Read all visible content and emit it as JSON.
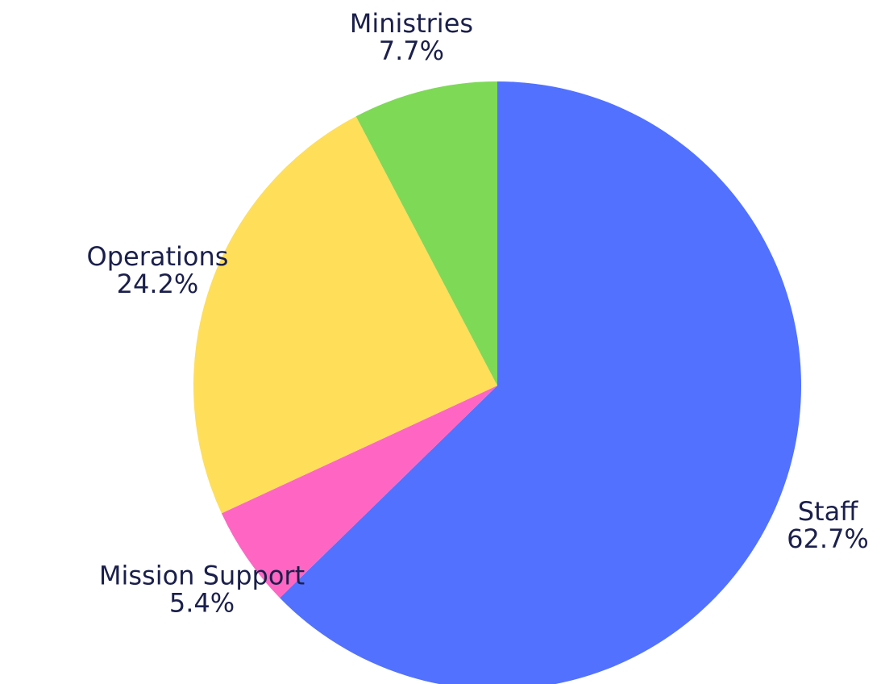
{
  "chart_data": {
    "type": "pie",
    "start_angle_deg": 0,
    "direction": "clockwise",
    "slices": [
      {
        "label": "Staff",
        "percent_label": "62.7%",
        "value": 62.7,
        "color": "#5271FF"
      },
      {
        "label": "Mission Support",
        "percent_label": "5.4%",
        "value": 5.4,
        "color": "#FF66C4"
      },
      {
        "label": "Operations",
        "percent_label": "24.2%",
        "value": 24.2,
        "color": "#FFDE59"
      },
      {
        "label": "Ministries",
        "percent_label": "7.7%",
        "value": 7.7,
        "color": "#7ED957"
      }
    ]
  }
}
